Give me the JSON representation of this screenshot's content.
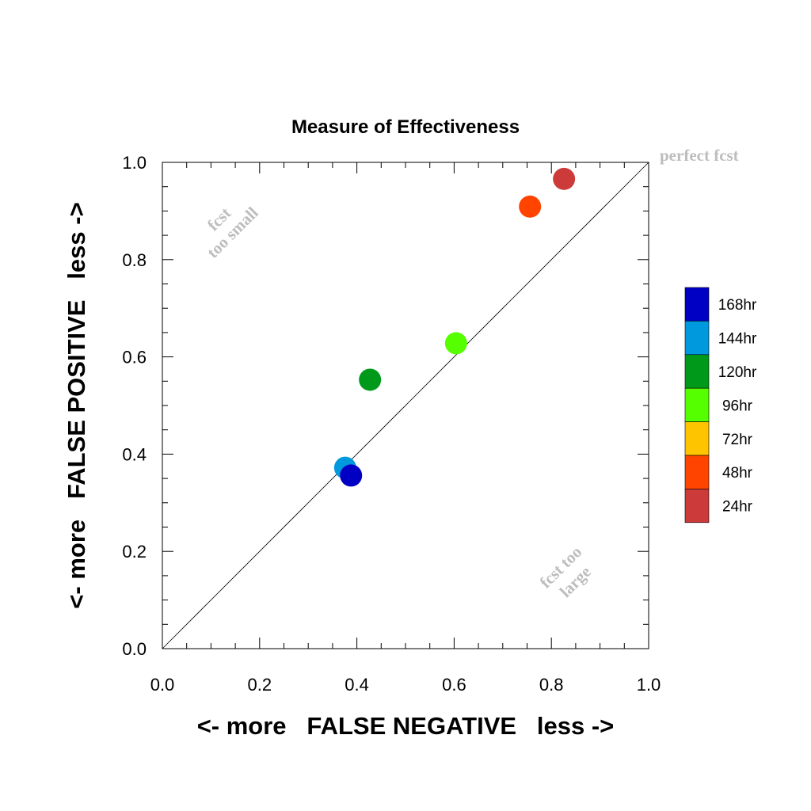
{
  "chart_data": {
    "type": "scatter",
    "title": "Measure of Effectiveness",
    "xlabel": "<- more   FALSE NEGATIVE   less ->",
    "ylabel": "<- more   FALSE POSITIVE   less ->",
    "xlim": [
      0.0,
      1.0
    ],
    "ylim": [
      0.0,
      1.0
    ],
    "x_ticks": [
      "0.0",
      "0.2",
      "0.4",
      "0.6",
      "0.8",
      "1.0"
    ],
    "y_ticks": [
      "0.0",
      "0.2",
      "0.4",
      "0.6",
      "0.8",
      "1.0"
    ],
    "grid": false,
    "reference_line": {
      "from": [
        0,
        0
      ],
      "to": [
        1,
        1
      ]
    },
    "annotations": {
      "perfect": "perfect fcst",
      "too_small_line1": "fcst",
      "too_small_line2": "too small",
      "too_large_line1": "fcst too",
      "too_large_line2": "large"
    },
    "legend_position": "right",
    "legend": [
      {
        "label": "168hr",
        "color": "#0000c4"
      },
      {
        "label": "144hr",
        "color": "#0099dd"
      },
      {
        "label": "120hr",
        "color": "#00991a"
      },
      {
        "label": "96hr",
        "color": "#55ff00"
      },
      {
        "label": "72hr",
        "color": "#ffc400"
      },
      {
        "label": "48hr",
        "color": "#ff4400"
      },
      {
        "label": "24hr",
        "color": "#cc3a3a"
      }
    ],
    "points": [
      {
        "series": "24hr",
        "x": 0.826,
        "y": 0.966,
        "color": "#cc3a3a"
      },
      {
        "series": "48hr",
        "x": 0.756,
        "y": 0.909,
        "color": "#ff4400"
      },
      {
        "series": "96hr",
        "x": 0.604,
        "y": 0.628,
        "color": "#55ff00"
      },
      {
        "series": "120hr",
        "x": 0.427,
        "y": 0.553,
        "color": "#00991a"
      },
      {
        "series": "144hr",
        "x": 0.376,
        "y": 0.372,
        "color": "#0099dd"
      },
      {
        "series": "168hr",
        "x": 0.388,
        "y": 0.356,
        "color": "#0000c4"
      }
    ]
  }
}
